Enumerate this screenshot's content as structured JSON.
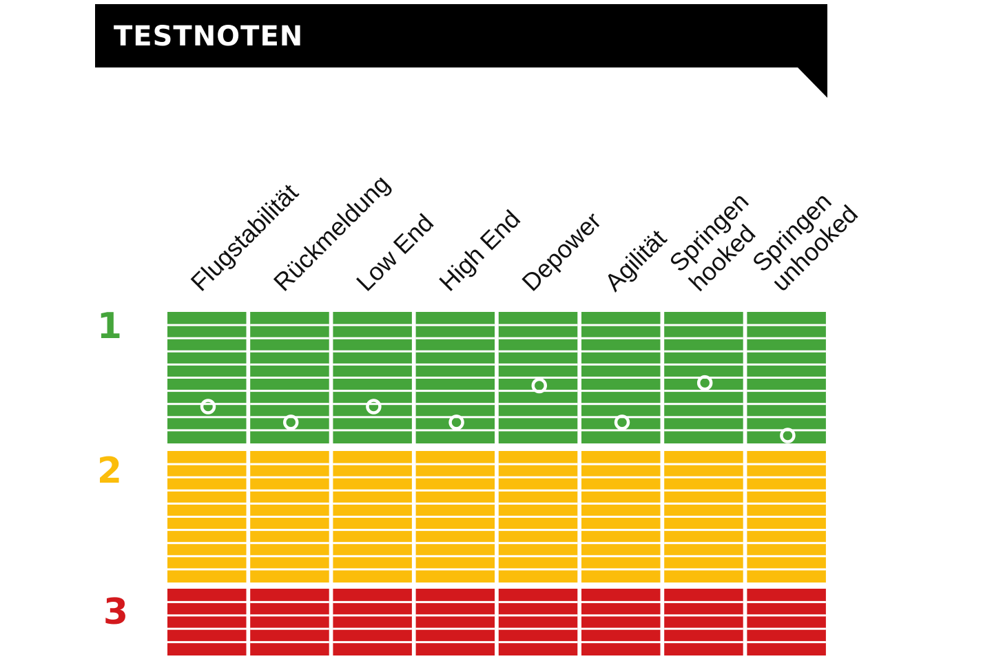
{
  "chart_data": {
    "type": "scatter",
    "title": "TESTNOTEN",
    "categories": [
      [
        "Flugstabilität"
      ],
      [
        "Rückmeldung"
      ],
      [
        "Low End"
      ],
      [
        "High End"
      ],
      [
        "Depower"
      ],
      [
        "Agilität"
      ],
      [
        "Springen",
        "hooked"
      ],
      [
        "Springen",
        "unhooked"
      ]
    ],
    "grades": [
      {
        "label": "1",
        "color": "#45a53b"
      },
      {
        "label": "2",
        "color": "#fbbd0b"
      },
      {
        "label": "3",
        "color": "#d3191d"
      }
    ],
    "grade_scale": {
      "best": 0.5,
      "worst": 3.5,
      "direction": "lower is better, plotted top to bottom"
    },
    "values": [
      1.22,
      1.34,
      1.22,
      1.34,
      1.06,
      1.34,
      1.04,
      1.44
    ],
    "marker_color": "#ffffff",
    "band_divider_color": "#ffffff"
  }
}
